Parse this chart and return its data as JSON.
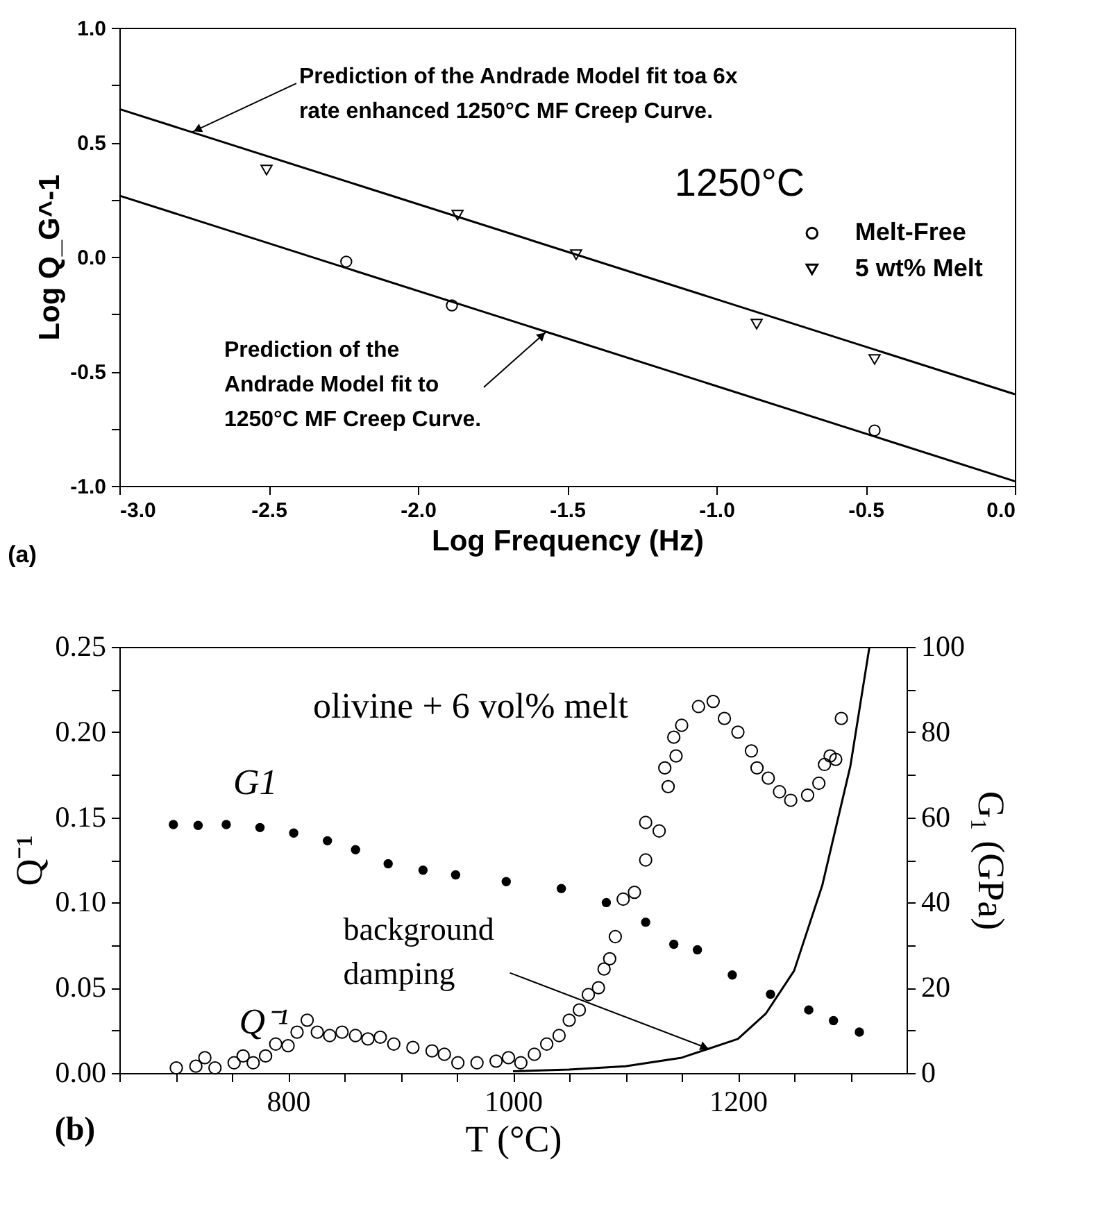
{
  "chart_data": [
    {
      "type": "scatter",
      "xlabel": "Log Frequency (Hz)",
      "ylabel": "Log Q_G^-1",
      "legend_title": "1250°C",
      "legend": "right",
      "grid": false,
      "xlim": [
        -3,
        0
      ],
      "ylim": [
        -1,
        1
      ],
      "xticks": [
        {
          "value": -3,
          "label": "-3.0"
        },
        {
          "value": -2.5,
          "label": "-2.5"
        },
        {
          "value": -2,
          "label": "-2.0"
        },
        {
          "value": -1.5,
          "label": "-1.5"
        },
        {
          "value": -1,
          "label": "-1.0"
        },
        {
          "value": -0.5,
          "label": "-0.5"
        },
        {
          "value": 0,
          "label": "0.0"
        }
      ],
      "yticks": [
        {
          "value": -1,
          "label": "-1.0"
        },
        {
          "value": -0.75,
          "label": null
        },
        {
          "value": -0.5,
          "label": "-0.5"
        },
        {
          "value": -0.25,
          "label": null
        },
        {
          "value": 0,
          "label": "0.0"
        },
        {
          "value": 0.25,
          "label": null
        },
        {
          "value": 0.5,
          "label": "0.5"
        },
        {
          "value": 0.75,
          "label": null
        },
        {
          "value": 1,
          "label": "1.0"
        }
      ],
      "series": [
        {
          "name": "Melt-Free",
          "marker": "circle",
          "color": "#000000",
          "x": [
            -2.24,
            -1.886,
            -0.47
          ],
          "values": [
            -0.021,
            -0.212,
            -0.758
          ]
        },
        {
          "name": "5 wt% Melt",
          "marker": "triangle",
          "color": "#000000",
          "x": [
            -2.507,
            -1.867,
            -1.47,
            -0.865,
            -0.47
          ],
          "values": [
            0.379,
            0.182,
            0.009,
            -0.294,
            -0.448
          ]
        },
        {
          "type": "line",
          "color": "#000000",
          "line_style": "solid",
          "x": [
            -3,
            0
          ],
          "values": [
            0.645,
            -0.6
          ]
        },
        {
          "type": "line",
          "color": "#000000",
          "line_style": "solid",
          "x": [
            -3,
            0
          ],
          "values": [
            0.267,
            -0.98
          ]
        }
      ],
      "annotations": [
        {
          "text": "Prediction of the Andrade Model fit toa 6x\nrate enhanced 1250°C MF Creep Curve.",
          "x": -2.756,
          "y": 0.545
        },
        {
          "text": "Prediction of the\nAndrade Model fit to\n1250°C MF Creep Curve.",
          "x": -1.57,
          "y": -0.327
        },
        "(a)"
      ]
    },
    {
      "type": "scatter",
      "xlabel": "T (°C)",
      "ylabel": "Q⁻¹",
      "y2label": "G₁ (GPa)",
      "legend": false,
      "grid": false,
      "xlim": [
        650,
        1350
      ],
      "ylim": [
        0,
        0.25
      ],
      "y2lim": [
        0,
        100
      ],
      "xticks": [
        {
          "value": 650,
          "label": null
        },
        {
          "value": 700,
          "label": null
        },
        {
          "value": 750,
          "label": null
        },
        800,
        {
          "value": 850,
          "label": null
        },
        {
          "value": 900,
          "label": null
        },
        {
          "value": 950,
          "label": null
        },
        1000,
        {
          "value": 1050,
          "label": null
        },
        {
          "value": 1100,
          "label": null
        },
        {
          "value": 1150,
          "label": null
        },
        1200,
        {
          "value": 1250,
          "label": null
        },
        {
          "value": 1300,
          "label": null
        }
      ],
      "yticks": [
        {
          "value": 0,
          "label": "0.00"
        },
        {
          "value": 0.025,
          "label": null
        },
        0.05,
        {
          "value": 0.075,
          "label": null
        },
        {
          "value": 0.1,
          "label": "0.10"
        },
        {
          "value": 0.125,
          "label": null
        },
        0.15,
        {
          "value": 0.175,
          "label": null
        },
        {
          "value": 0.2,
          "label": "0.20"
        },
        {
          "value": 0.225,
          "label": null
        },
        0.25
      ],
      "y2ticks": [
        0,
        {
          "value": 10,
          "label": null
        },
        20,
        {
          "value": 30,
          "label": null
        },
        40,
        {
          "value": 50,
          "label": null
        },
        60,
        {
          "value": 70,
          "label": null
        },
        80,
        {
          "value": 90,
          "label": null
        },
        100
      ],
      "series": [
        {
          "name": "Q⁻¹",
          "marker": "circle",
          "color": "#000000",
          "x": [
            700.6,
            718,
            726,
            735,
            752,
            760,
            769,
            780,
            789,
            800,
            808,
            817,
            826,
            837,
            848,
            860,
            871,
            882,
            894,
            911,
            928,
            939,
            951,
            968,
            985,
            996,
            1007,
            1019,
            1030,
            1041,
            1050,
            1059,
            1067,
            1076,
            1081,
            1086,
            1091,
            1098,
            1108,
            1118,
            1118,
            1130,
            1135,
            1138,
            1143,
            1145,
            1150,
            1165,
            1178,
            1188,
            1200,
            1212,
            1217,
            1227,
            1237,
            1247,
            1262,
            1272,
            1277,
            1282,
            1287,
            1292
          ],
          "values": [
            0.003,
            0.004,
            0.009,
            0.003,
            0.006,
            0.01,
            0.006,
            0.01,
            0.017,
            0.016,
            0.024,
            0.031,
            0.024,
            0.022,
            0.024,
            0.022,
            0.02,
            0.021,
            0.017,
            0.015,
            0.013,
            0.011,
            0.006,
            0.006,
            0.007,
            0.009,
            0.006,
            0.011,
            0.017,
            0.022,
            0.031,
            0.037,
            0.046,
            0.05,
            0.061,
            0.067,
            0.08,
            0.102,
            0.106,
            0.125,
            0.147,
            0.142,
            0.179,
            0.168,
            0.197,
            0.186,
            0.204,
            0.215,
            0.218,
            0.208,
            0.2,
            0.189,
            0.179,
            0.173,
            0.165,
            0.16,
            0.163,
            0.17,
            0.181,
            0.186,
            0.184,
            0.208
          ]
        },
        {
          "name": "G1",
          "marker": "circle",
          "axis": "y2",
          "color": "#000000",
          "x": [
            698,
            720,
            745,
            775,
            805,
            835,
            860,
            889,
            920,
            949,
            994,
            1043,
            1083,
            1118,
            1143,
            1164,
            1195,
            1229,
            1263,
            1285,
            1308
          ],
          "values": [
            58.3,
            58.1,
            58.3,
            57.6,
            56.3,
            54.5,
            52.4,
            49.1,
            47.6,
            46.5,
            44.9,
            43.3,
            40,
            35.4,
            30.2,
            28.9,
            23,
            18.5,
            14.8,
            12.3,
            9.6
          ]
        },
        {
          "type": "line",
          "color": "#000000",
          "line_style": "solid",
          "x": [
            1000,
            1050,
            1100,
            1150,
            1200,
            1225,
            1250,
            1275,
            1300,
            1317
          ],
          "values": [
            0.001,
            0.002,
            0.004,
            0.009,
            0.02,
            0.035,
            0.06,
            0.11,
            0.18,
            0.25
          ]
        }
      ],
      "annotations": [
        "olivine + 6 vol% melt",
        {
          "text": "background\ndamping",
          "x": 1175,
          "y": 0.014
        },
        "(b)"
      ]
    }
  ]
}
